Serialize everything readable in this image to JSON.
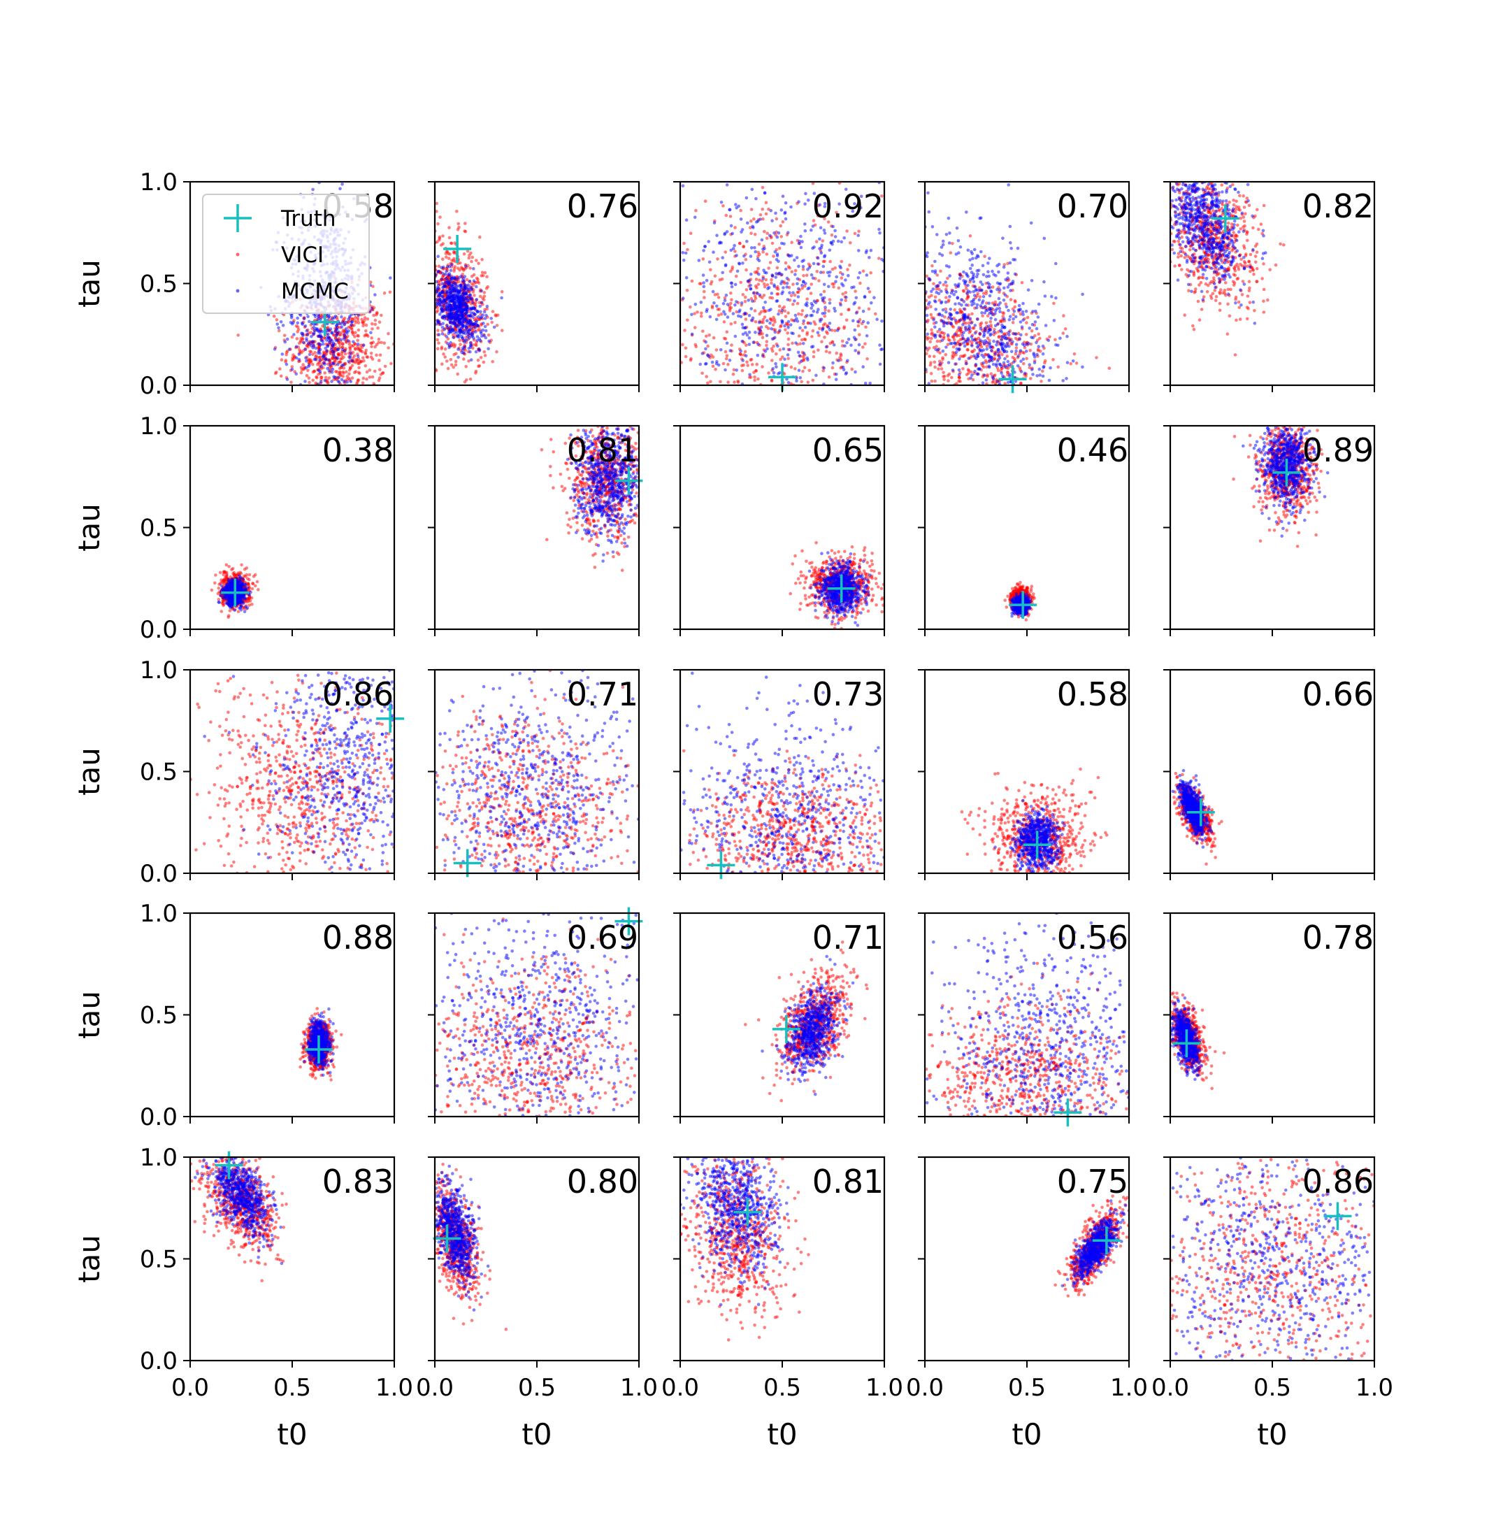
{
  "chart_data": {
    "type": "scatter",
    "layout": {
      "rows": 5,
      "cols": 5
    },
    "xlabel": "t0",
    "ylabel": "tau",
    "xlim": [
      0.0,
      1.0
    ],
    "ylim": [
      0.0,
      1.0
    ],
    "xticks": [
      "0.0",
      "0.5",
      "1.0"
    ],
    "yticks": [
      "0.0",
      "0.5",
      "1.0"
    ],
    "legend": {
      "placement": "upper-left of first panel",
      "entries": [
        {
          "label": "Truth",
          "marker": "plus",
          "color": "#17bfbf"
        },
        {
          "label": "VICI",
          "marker": "dot",
          "color": "#ff0000"
        },
        {
          "label": "MCMC",
          "marker": "dot",
          "color": "#0000ff"
        }
      ]
    },
    "colors": {
      "truth": "#17bfbf",
      "vici": "#ff0000",
      "mcmc": "#0000ff"
    },
    "panels": [
      {
        "score": "0.58",
        "truth": [
          0.66,
          0.31
        ],
        "vici": {
          "mx": 0.72,
          "my": 0.18,
          "sx": 0.12,
          "sy": 0.14,
          "rho": 0.0
        },
        "mcmc": {
          "mx": 0.66,
          "my": 0.42,
          "sx": 0.1,
          "sy": 0.25,
          "rho": 0.0
        }
      },
      {
        "score": "0.76",
        "truth": [
          0.11,
          0.67
        ],
        "vici": {
          "mx": 0.1,
          "my": 0.42,
          "sx": 0.08,
          "sy": 0.16,
          "rho": -0.3
        },
        "mcmc": {
          "mx": 0.11,
          "my": 0.38,
          "sx": 0.06,
          "sy": 0.09,
          "rho": -0.4
        }
      },
      {
        "score": "0.92",
        "truth": [
          0.5,
          0.04
        ],
        "vici": {
          "mx": 0.45,
          "my": 0.3,
          "sx": 0.28,
          "sy": 0.28,
          "rho": 0.0
        },
        "mcmc": {
          "mx": 0.55,
          "my": 0.4,
          "sx": 0.3,
          "sy": 0.35,
          "rho": 0.0
        }
      },
      {
        "score": "0.70",
        "truth": [
          0.43,
          0.03
        ],
        "vici": {
          "mx": 0.25,
          "my": 0.2,
          "sx": 0.2,
          "sy": 0.18,
          "rho": -0.3
        },
        "mcmc": {
          "mx": 0.28,
          "my": 0.3,
          "sx": 0.18,
          "sy": 0.25,
          "rho": -0.4
        }
      },
      {
        "score": "0.82",
        "truth": [
          0.27,
          0.82
        ],
        "vici": {
          "mx": 0.2,
          "my": 0.72,
          "sx": 0.12,
          "sy": 0.16,
          "rho": -0.3
        },
        "mcmc": {
          "mx": 0.17,
          "my": 0.8,
          "sx": 0.09,
          "sy": 0.14,
          "rho": -0.3
        }
      },
      {
        "score": "0.38",
        "truth": [
          0.22,
          0.18
        ],
        "vici": {
          "mx": 0.22,
          "my": 0.19,
          "sx": 0.035,
          "sy": 0.04,
          "rho": 0.0
        },
        "mcmc": {
          "mx": 0.22,
          "my": 0.18,
          "sx": 0.025,
          "sy": 0.03,
          "rho": 0.0
        }
      },
      {
        "score": "0.81",
        "truth": [
          0.95,
          0.73
        ],
        "vici": {
          "mx": 0.84,
          "my": 0.73,
          "sx": 0.1,
          "sy": 0.15,
          "rho": 0.0
        },
        "mcmc": {
          "mx": 0.85,
          "my": 0.73,
          "sx": 0.08,
          "sy": 0.13,
          "rho": 0.0
        }
      },
      {
        "score": "0.65",
        "truth": [
          0.79,
          0.2
        ],
        "vici": {
          "mx": 0.79,
          "my": 0.22,
          "sx": 0.08,
          "sy": 0.07,
          "rho": 0.0
        },
        "mcmc": {
          "mx": 0.79,
          "my": 0.2,
          "sx": 0.05,
          "sy": 0.06,
          "rho": 0.0
        }
      },
      {
        "score": "0.46",
        "truth": [
          0.48,
          0.12
        ],
        "vici": {
          "mx": 0.47,
          "my": 0.14,
          "sx": 0.022,
          "sy": 0.03,
          "rho": 0.0
        },
        "mcmc": {
          "mx": 0.47,
          "my": 0.12,
          "sx": 0.017,
          "sy": 0.02,
          "rho": 0.0
        }
      },
      {
        "score": "0.89",
        "truth": [
          0.57,
          0.77
        ],
        "vici": {
          "mx": 0.57,
          "my": 0.78,
          "sx": 0.07,
          "sy": 0.12,
          "rho": 0.0
        },
        "mcmc": {
          "mx": 0.57,
          "my": 0.8,
          "sx": 0.06,
          "sy": 0.1,
          "rho": 0.0
        }
      },
      {
        "score": "0.86",
        "truth": [
          0.98,
          0.76
        ],
        "vici": {
          "mx": 0.55,
          "my": 0.4,
          "sx": 0.25,
          "sy": 0.25,
          "rho": 0.0
        },
        "mcmc": {
          "mx": 0.78,
          "my": 0.55,
          "sx": 0.2,
          "sy": 0.3,
          "rho": 0.0
        }
      },
      {
        "score": "0.71",
        "truth": [
          0.16,
          0.05
        ],
        "vici": {
          "mx": 0.45,
          "my": 0.3,
          "sx": 0.25,
          "sy": 0.25,
          "rho": 0.0
        },
        "mcmc": {
          "mx": 0.5,
          "my": 0.4,
          "sx": 0.28,
          "sy": 0.3,
          "rho": 0.0
        }
      },
      {
        "score": "0.73",
        "truth": [
          0.2,
          0.04
        ],
        "vici": {
          "mx": 0.55,
          "my": 0.2,
          "sx": 0.25,
          "sy": 0.15,
          "rho": 0.0
        },
        "mcmc": {
          "mx": 0.5,
          "my": 0.25,
          "sx": 0.28,
          "sy": 0.28,
          "rho": 0.0
        }
      },
      {
        "score": "0.58",
        "truth": [
          0.55,
          0.14
        ],
        "vici": {
          "mx": 0.55,
          "my": 0.17,
          "sx": 0.12,
          "sy": 0.12,
          "rho": 0.0
        },
        "mcmc": {
          "mx": 0.55,
          "my": 0.15,
          "sx": 0.05,
          "sy": 0.07,
          "rho": 0.0
        }
      },
      {
        "score": "0.66",
        "truth": [
          0.15,
          0.3
        ],
        "vici": {
          "mx": 0.12,
          "my": 0.29,
          "sx": 0.04,
          "sy": 0.07,
          "rho": -0.6
        },
        "mcmc": {
          "mx": 0.11,
          "my": 0.32,
          "sx": 0.03,
          "sy": 0.06,
          "rho": -0.6
        }
      },
      {
        "score": "0.88",
        "truth": [
          0.63,
          0.33
        ],
        "vici": {
          "mx": 0.63,
          "my": 0.35,
          "sx": 0.03,
          "sy": 0.06,
          "rho": 0.0
        },
        "mcmc": {
          "mx": 0.63,
          "my": 0.36,
          "sx": 0.025,
          "sy": 0.05,
          "rho": 0.0
        }
      },
      {
        "score": "0.69",
        "truth": [
          0.95,
          0.96
        ],
        "vici": {
          "mx": 0.45,
          "my": 0.3,
          "sx": 0.25,
          "sy": 0.25,
          "rho": 0.0
        },
        "mcmc": {
          "mx": 0.5,
          "my": 0.45,
          "sx": 0.28,
          "sy": 0.3,
          "rho": 0.0
        }
      },
      {
        "score": "0.71",
        "truth": [
          0.52,
          0.43
        ],
        "vici": {
          "mx": 0.65,
          "my": 0.45,
          "sx": 0.09,
          "sy": 0.12,
          "rho": 0.4
        },
        "mcmc": {
          "mx": 0.65,
          "my": 0.42,
          "sx": 0.06,
          "sy": 0.1,
          "rho": 0.4
        }
      },
      {
        "score": "0.56",
        "truth": [
          0.7,
          0.02
        ],
        "vici": {
          "mx": 0.5,
          "my": 0.2,
          "sx": 0.25,
          "sy": 0.18,
          "rho": 0.0
        },
        "mcmc": {
          "mx": 0.6,
          "my": 0.3,
          "sx": 0.25,
          "sy": 0.28,
          "rho": 0.0
        }
      },
      {
        "score": "0.78",
        "truth": [
          0.08,
          0.36
        ],
        "vici": {
          "mx": 0.09,
          "my": 0.38,
          "sx": 0.04,
          "sy": 0.08,
          "rho": -0.5
        },
        "mcmc": {
          "mx": 0.08,
          "my": 0.38,
          "sx": 0.03,
          "sy": 0.07,
          "rho": -0.5
        }
      },
      {
        "score": "0.83",
        "truth": [
          0.19,
          0.96
        ],
        "vici": {
          "mx": 0.25,
          "my": 0.78,
          "sx": 0.09,
          "sy": 0.12,
          "rho": -0.5
        },
        "mcmc": {
          "mx": 0.25,
          "my": 0.82,
          "sx": 0.07,
          "sy": 0.1,
          "rho": -0.5
        }
      },
      {
        "score": "0.80",
        "truth": [
          0.06,
          0.6
        ],
        "vici": {
          "mx": 0.1,
          "my": 0.6,
          "sx": 0.06,
          "sy": 0.14,
          "rho": -0.5
        },
        "mcmc": {
          "mx": 0.1,
          "my": 0.62,
          "sx": 0.05,
          "sy": 0.12,
          "rho": -0.5
        }
      },
      {
        "score": "0.81",
        "truth": [
          0.33,
          0.73
        ],
        "vici": {
          "mx": 0.28,
          "my": 0.62,
          "sx": 0.12,
          "sy": 0.2,
          "rho": -0.2
        },
        "mcmc": {
          "mx": 0.28,
          "my": 0.75,
          "sx": 0.1,
          "sy": 0.15,
          "rho": -0.2
        }
      },
      {
        "score": "0.75",
        "truth": [
          0.89,
          0.59
        ],
        "vici": {
          "mx": 0.83,
          "my": 0.56,
          "sx": 0.06,
          "sy": 0.09,
          "rho": 0.7
        },
        "mcmc": {
          "mx": 0.84,
          "my": 0.56,
          "sx": 0.05,
          "sy": 0.07,
          "rho": 0.7
        }
      },
      {
        "score": "0.86",
        "truth": [
          0.82,
          0.71
        ],
        "vici": {
          "mx": 0.5,
          "my": 0.45,
          "sx": 0.3,
          "sy": 0.3,
          "rho": 0.0
        },
        "mcmc": {
          "mx": 0.5,
          "my": 0.45,
          "sx": 0.32,
          "sy": 0.32,
          "rho": 0.0
        }
      }
    ]
  }
}
